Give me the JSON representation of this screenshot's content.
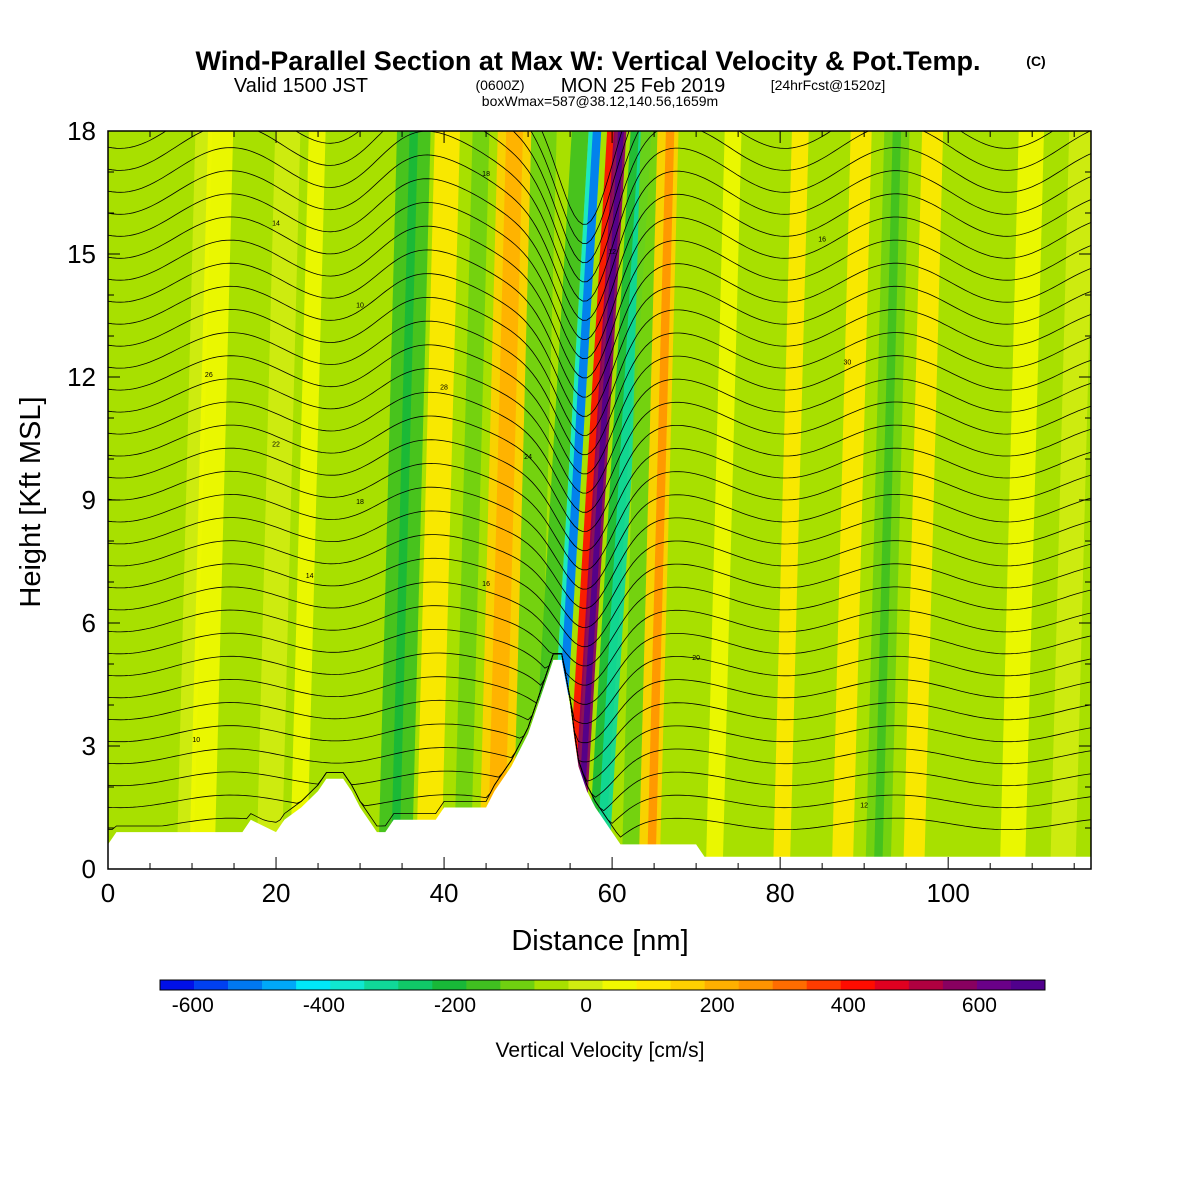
{
  "title": {
    "main": "Wind-Parallel Section at Max W: Vertical Velocity & Pot.Temp.",
    "copyright": "(C)",
    "valid_prefix": "Valid 1500 JST",
    "valid_zulu": "(0600Z)",
    "valid_date": "MON 25 Feb 2019",
    "forecast": "[24hrFcst@1520z]",
    "boxmax": "boxWmax=587@38.12,140.56,1659m"
  },
  "chart_data": {
    "type": "heatmap",
    "xlabel": "Distance [nm]",
    "ylabel": "Height [Kft MSL]",
    "xlim": [
      0,
      117
    ],
    "ylim": [
      0,
      18
    ],
    "x_ticks": [
      0,
      20,
      40,
      60,
      80,
      100
    ],
    "y_ticks": [
      0,
      3,
      6,
      9,
      12,
      15,
      18
    ],
    "grid": false,
    "fill_variable": "Vertical Velocity [cm/s]",
    "colorbar": {
      "label": "Vertical Velocity [cm/s]",
      "tick_labels": [
        -600,
        -400,
        -200,
        0,
        200,
        400,
        600
      ],
      "range": [
        -650,
        700
      ],
      "interval": 50,
      "colors": [
        "#0010e8",
        "#0040f0",
        "#0078f0",
        "#00a8f8",
        "#00e8f8",
        "#10e8d0",
        "#10d898",
        "#10c868",
        "#18b838",
        "#40c020",
        "#70d010",
        "#a8e000",
        "#d0ec10",
        "#f0f800",
        "#ffe800",
        "#ffd000",
        "#ffb000",
        "#ff9400",
        "#ff6c00",
        "#ff3c00",
        "#ff0c00",
        "#e00020",
        "#b00040",
        "#880060",
        "#6a0088",
        "#50008c"
      ]
    },
    "terrain_profile": {
      "x_nm": [
        0,
        1,
        16,
        17,
        20,
        21,
        23,
        25,
        26,
        28,
        29,
        30,
        31,
        32,
        33,
        34,
        35,
        39,
        40,
        45,
        46,
        48,
        50,
        51,
        52,
        53,
        54,
        55,
        55.5,
        56,
        57,
        58,
        59,
        60,
        61,
        62,
        63,
        70,
        71,
        117
      ],
      "height_kft": [
        0.6,
        0.9,
        0.9,
        1.2,
        0.9,
        1.2,
        1.5,
        1.9,
        2.2,
        2.2,
        1.9,
        1.5,
        1.2,
        0.9,
        0.9,
        1.2,
        1.2,
        1.2,
        1.5,
        1.5,
        1.9,
        2.5,
        3.3,
        3.9,
        4.5,
        5.1,
        5.1,
        4.0,
        3.2,
        2.5,
        1.9,
        1.5,
        1.2,
        0.9,
        0.6,
        0.6,
        0.6,
        0.6,
        0.3,
        0.3
      ]
    },
    "theta_contours": {
      "interval": 2,
      "labels_shown": [
        "10",
        "12",
        "14",
        "16",
        "18",
        "20",
        "22",
        "24",
        "26",
        "28",
        "30"
      ]
    },
    "max_w_cm_s": 587
  }
}
